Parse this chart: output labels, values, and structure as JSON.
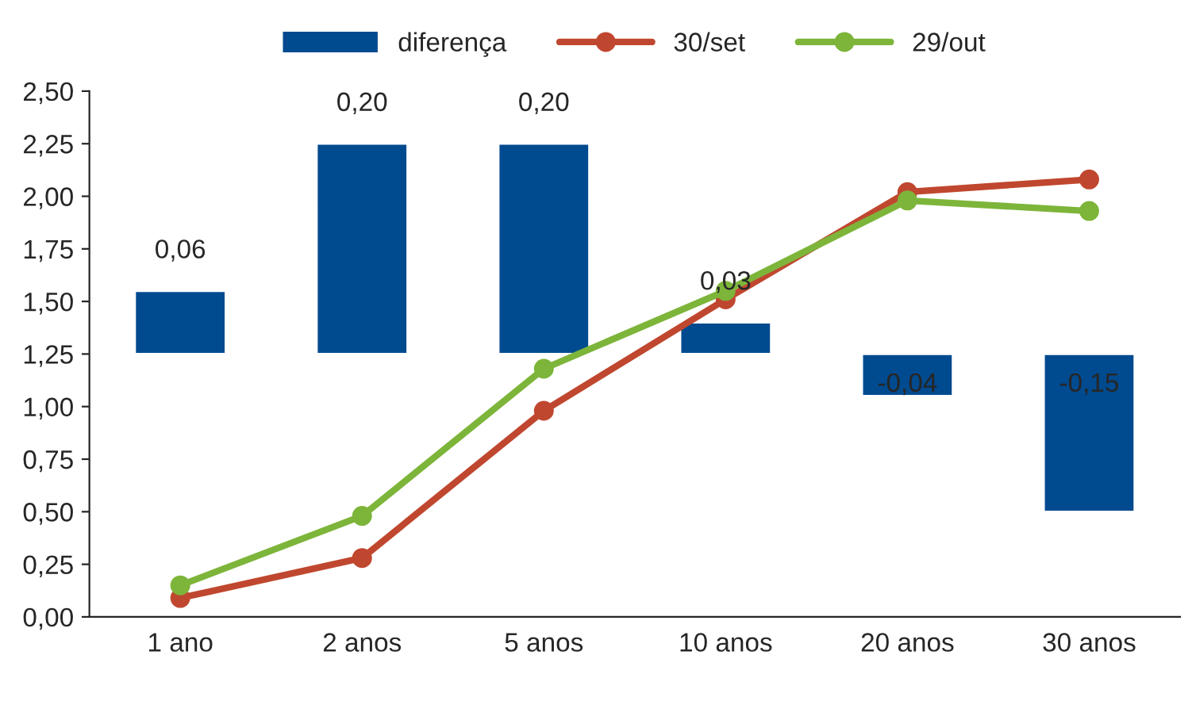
{
  "chart_data": {
    "type": "bar",
    "categories": [
      "1 ano",
      "2 anos",
      "5 anos",
      "10 anos",
      "20 anos",
      "30 anos"
    ],
    "series": [
      {
        "name": "diferença",
        "axis": "y2",
        "color": "#004a8f",
        "values": [
          0.06,
          0.2,
          0.2,
          0.03,
          -0.04,
          -0.15
        ],
        "value_labels": [
          "0,06",
          "0,20",
          "0,20",
          "0,03",
          "-0,04",
          "-0,15"
        ]
      },
      {
        "name": "30/set",
        "type": "line",
        "color": "#c0472f",
        "values": [
          0.09,
          0.28,
          0.98,
          1.51,
          2.02,
          2.08
        ]
      },
      {
        "name": "29/out",
        "type": "line",
        "color": "#7db53a",
        "values": [
          0.15,
          0.48,
          1.18,
          1.55,
          1.98,
          1.93
        ]
      }
    ],
    "ylim": [
      0,
      2.5
    ],
    "yticks": [
      {
        "value": 0,
        "label": "0,00"
      },
      {
        "value": 0.25,
        "label": "0,25"
      },
      {
        "value": 0.5,
        "label": "0,50"
      },
      {
        "value": 0.75,
        "label": "0,75"
      },
      {
        "value": 1,
        "label": "1,00"
      },
      {
        "value": 1.25,
        "label": "1,25"
      },
      {
        "value": 1.5,
        "label": "1,50"
      },
      {
        "value": 1.75,
        "label": "1,75"
      },
      {
        "value": 2,
        "label": "2,00"
      },
      {
        "value": 2.25,
        "label": "2,25"
      },
      {
        "value": 2.5,
        "label": "2,50"
      }
    ],
    "y2lim": [
      -0.25,
      0.25
    ],
    "tick_labels": "xy",
    "marker": "circle",
    "line_style": "solid",
    "legend": "top",
    "grid": false
  }
}
